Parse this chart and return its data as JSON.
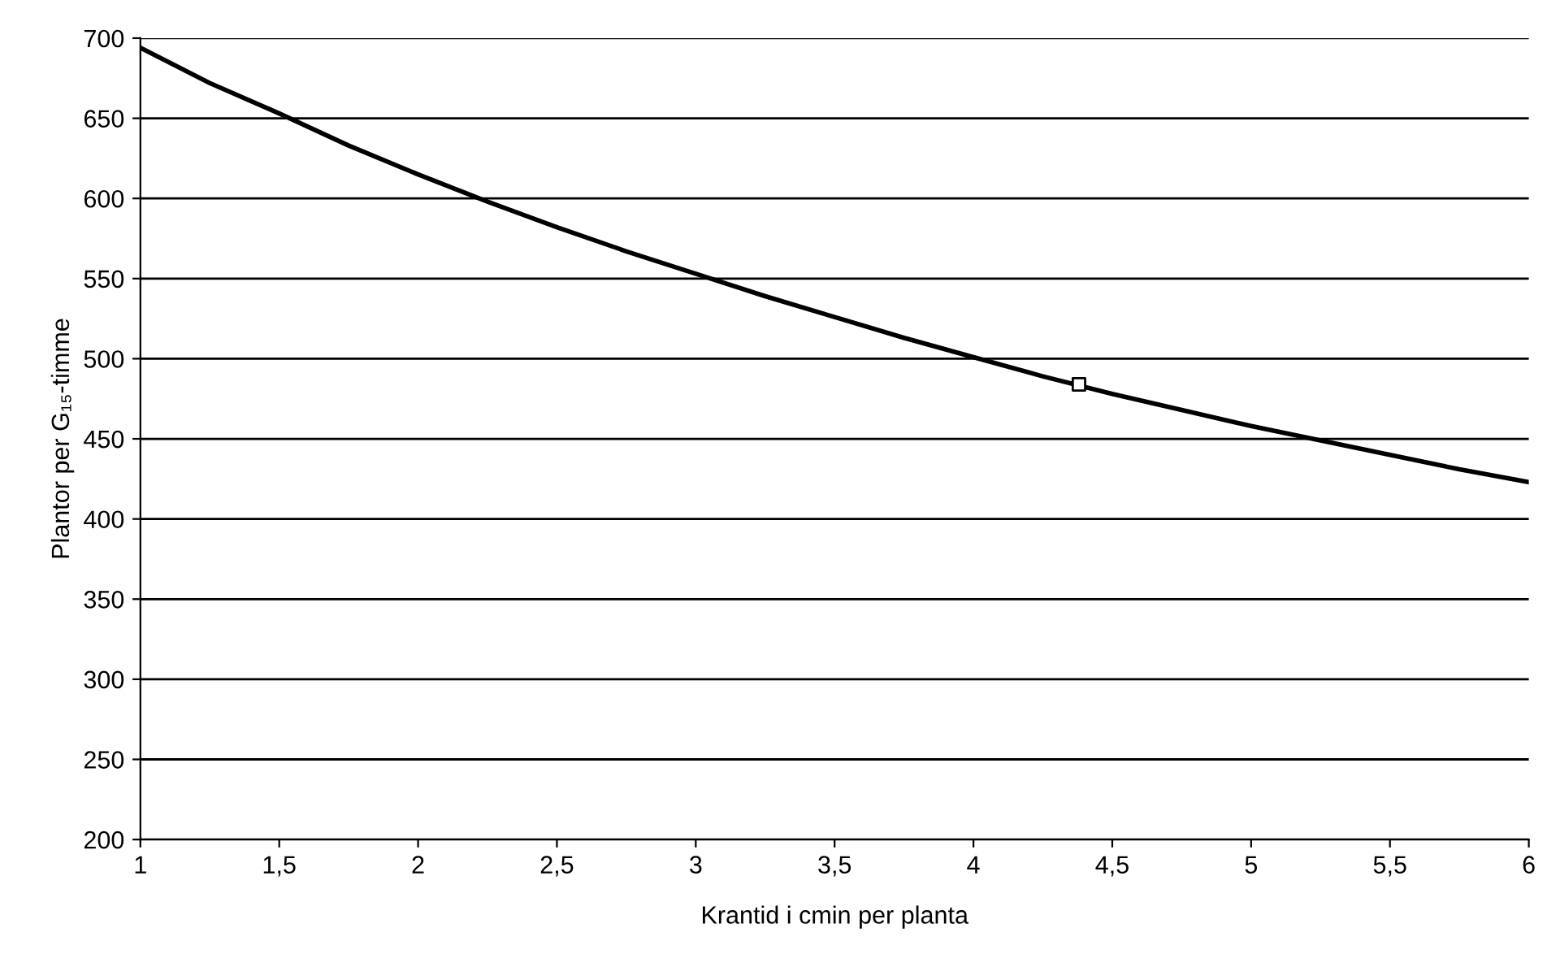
{
  "chart_data": {
    "type": "line",
    "xlabel": "Krantid i cmin per planta",
    "ylabel": "Plantor per G₁₅-timme",
    "series": [
      {
        "color": "#000000",
        "x": [
          1,
          1.25,
          1.5,
          1.75,
          2,
          2.25,
          2.5,
          2.75,
          3,
          3.25,
          3.5,
          3.75,
          4,
          4.25,
          4.5,
          4.75,
          5,
          5.25,
          5.5,
          5.75,
          6
        ],
        "values": [
          694,
          672,
          653,
          633,
          615,
          598,
          582,
          567,
          553,
          539,
          526,
          513,
          501,
          489,
          478,
          468,
          458,
          449,
          440,
          431,
          423
        ],
        "marker": "none"
      },
      {
        "type": "scatter",
        "color": "#000000",
        "x": [
          4.38
        ],
        "values": [
          484
        ],
        "marker": "square"
      }
    ],
    "xlim": [
      1,
      6
    ],
    "xticks": [
      1,
      {
        "value": 1.5,
        "label": "1,5"
      },
      2,
      {
        "value": 2.5,
        "label": "2,5"
      },
      3,
      {
        "value": 3.5,
        "label": "3,5"
      },
      4,
      {
        "value": 4.5,
        "label": "4,5"
      },
      5,
      {
        "value": 5.5,
        "label": "5,5"
      },
      6
    ],
    "ylim": [
      200,
      700
    ],
    "yticks": [
      200,
      250,
      300,
      350,
      400,
      450,
      500,
      550,
      600,
      650,
      700
    ],
    "grid": "y",
    "legend": false
  }
}
